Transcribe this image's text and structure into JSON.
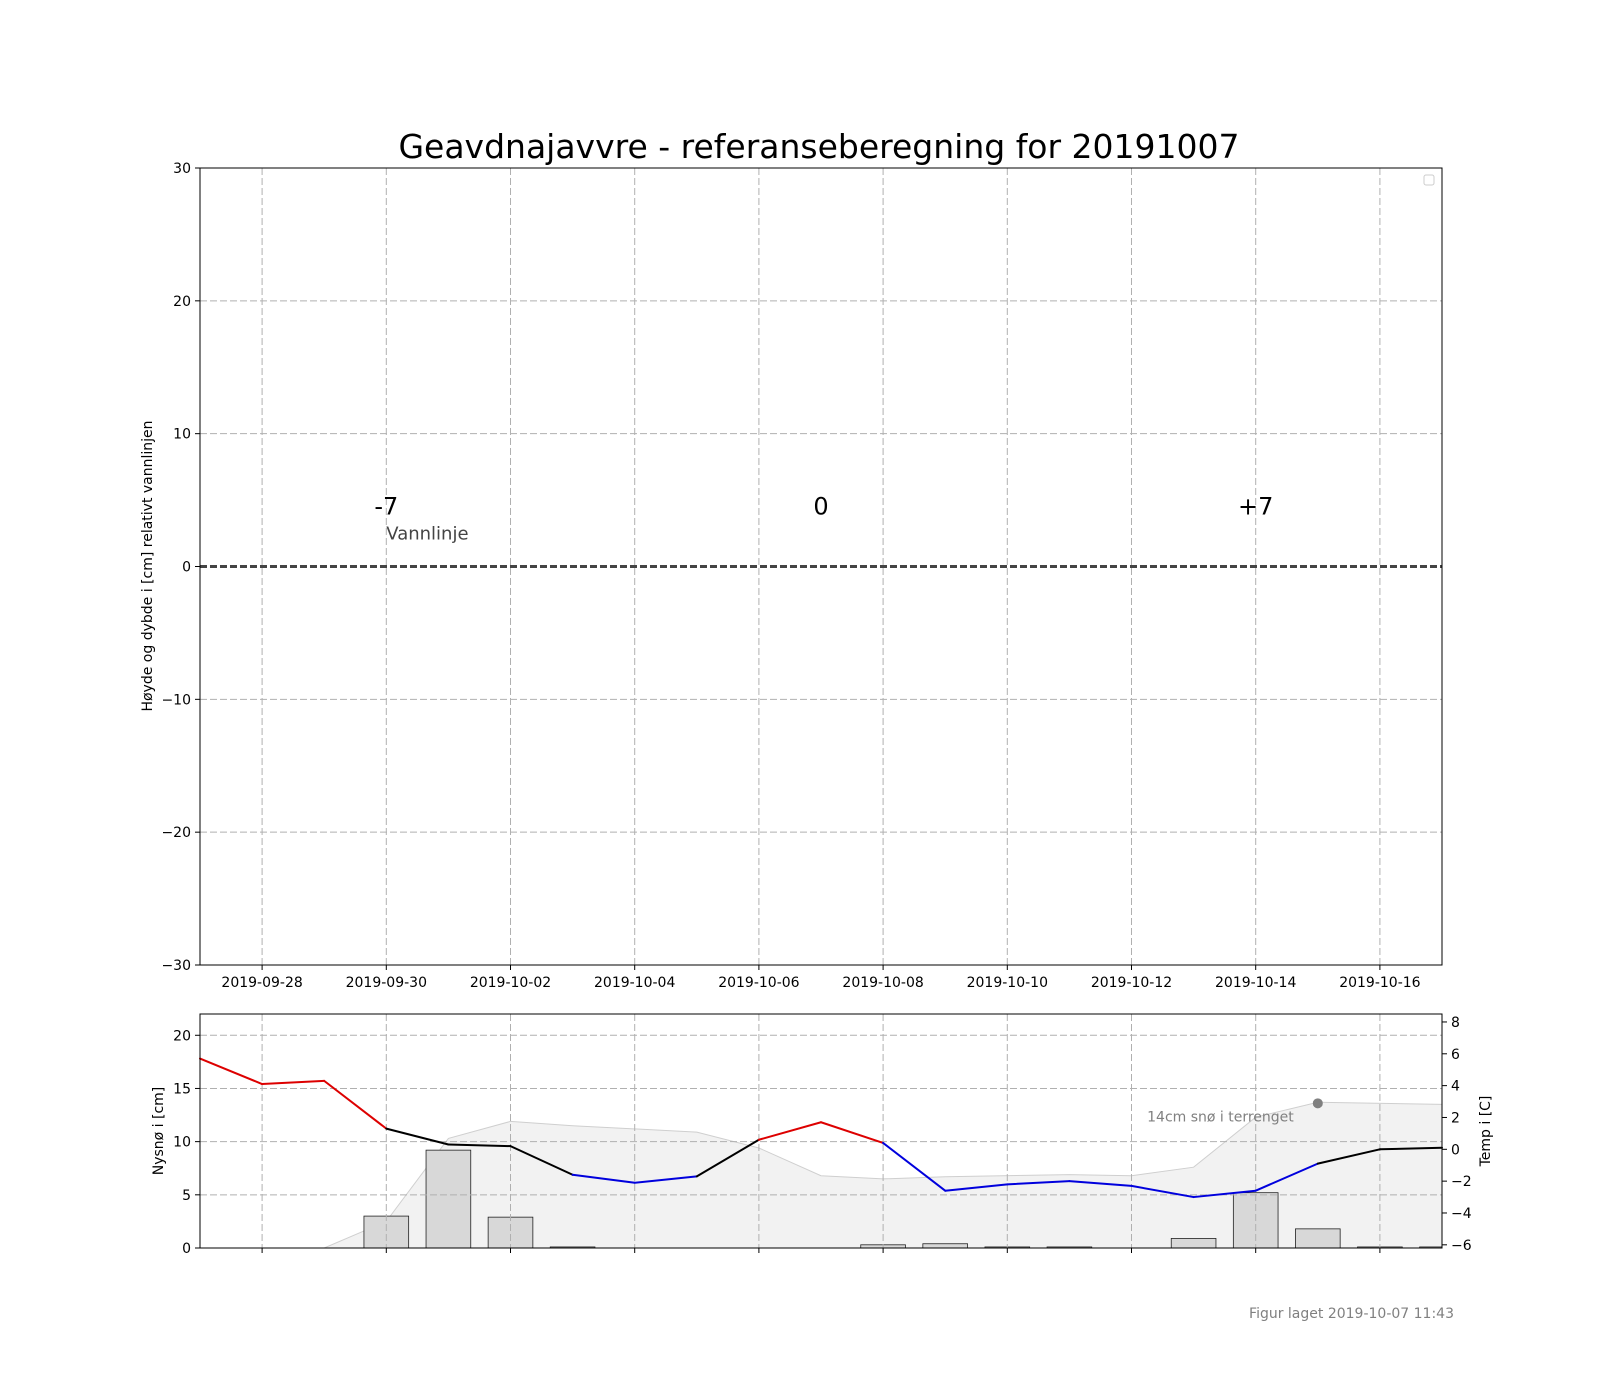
{
  "figure": {
    "footer": "Figur laget 2019-10-07 11:43"
  },
  "chart_data": [
    {
      "type": "line",
      "title": "Geavdnajavvre - referanseberegning for 20191007",
      "ylabel": "Høyde og dybde i [cm] relativt vannlinjen",
      "xlabel": "",
      "x_range": [
        "2019-09-27",
        "2019-10-17"
      ],
      "ylim": [
        -30,
        30
      ],
      "y_ticks": [
        -30,
        -20,
        -10,
        0,
        10,
        20,
        30
      ],
      "y_tick_labels": [
        "−30",
        "−20",
        "−10",
        "0",
        "10",
        "20",
        "30"
      ],
      "x_ticks": [
        "2019-09-28",
        "2019-09-30",
        "2019-10-02",
        "2019-10-04",
        "2019-10-06",
        "2019-10-08",
        "2019-10-10",
        "2019-10-12",
        "2019-10-14",
        "2019-10-16"
      ],
      "grid": true,
      "legend": "top-right (empty)",
      "waterline": {
        "y": 0,
        "label": "Vannlinje",
        "label_x": "2019-09-30",
        "label_y": 1.5
      },
      "day_markers": [
        {
          "label": "-7",
          "x": "2019-09-30",
          "y": 4.5
        },
        {
          "label": "0",
          "x": "2019-10-07",
          "y": 4.5
        },
        {
          "label": "+7",
          "x": "2019-10-14",
          "y": 4.5
        }
      ]
    },
    {
      "type": "bar",
      "ylabel": "Nysnø i [cm]",
      "ylim": [
        0,
        22
      ],
      "y_ticks": [
        0,
        5,
        10,
        15,
        20
      ],
      "y_tick_labels": [
        "0",
        "5",
        "10",
        "15",
        "20"
      ],
      "grid": true,
      "bar_color": "#d8d8d8",
      "snow_bars": [
        {
          "x": "2019-09-30",
          "value": 3.0
        },
        {
          "x": "2019-10-01",
          "value": 9.2
        },
        {
          "x": "2019-10-02",
          "value": 2.9
        },
        {
          "x": "2019-10-03",
          "value": 0.1
        },
        {
          "x": "2019-10-08",
          "value": 0.3
        },
        {
          "x": "2019-10-09",
          "value": 0.4
        },
        {
          "x": "2019-10-10",
          "value": 0.1
        },
        {
          "x": "2019-10-11",
          "value": 0.1
        },
        {
          "x": "2019-10-13",
          "value": 0.9
        },
        {
          "x": "2019-10-14",
          "value": 5.2
        },
        {
          "x": "2019-10-15",
          "value": 1.8
        },
        {
          "x": "2019-10-16",
          "value": 0.1
        },
        {
          "x": "2019-10-17",
          "value": 0.1
        }
      ],
      "snow_depth_area": {
        "x": [
          "2019-09-27",
          "2019-09-29",
          "2019-09-30",
          "2019-10-01",
          "2019-10-02",
          "2019-10-03",
          "2019-10-05",
          "2019-10-06",
          "2019-10-07",
          "2019-10-08",
          "2019-10-09",
          "2019-10-11",
          "2019-10-12",
          "2019-10-13",
          "2019-10-14",
          "2019-10-15",
          "2019-10-17"
        ],
        "values": [
          0,
          0,
          2.5,
          10.3,
          11.9,
          11.5,
          10.9,
          9.4,
          6.8,
          6.5,
          6.7,
          6.9,
          6.8,
          7.6,
          12.3,
          13.7,
          13.5
        ],
        "label": "14cm snø i terrenget",
        "marker": {
          "x": "2019-10-15",
          "value": 13.6
        }
      },
      "temperature": {
        "ylabel": "Temp i [C]",
        "ylim": [
          -6.2,
          8.5
        ],
        "y_ticks": [
          -6,
          -4,
          -2,
          0,
          2,
          4,
          6,
          8
        ],
        "y_tick_labels": [
          "−6",
          "−4",
          "−2",
          "0",
          "2",
          "4",
          "6",
          "8"
        ],
        "x": [
          "2019-09-27",
          "2019-09-28",
          "2019-09-29",
          "2019-09-30",
          "2019-10-01",
          "2019-10-02",
          "2019-10-03",
          "2019-10-04",
          "2019-10-05",
          "2019-10-06",
          "2019-10-07",
          "2019-10-08",
          "2019-10-09",
          "2019-10-10",
          "2019-10-11",
          "2019-10-12",
          "2019-10-13",
          "2019-10-14",
          "2019-10-15",
          "2019-10-16",
          "2019-10-17"
        ],
        "values": [
          5.7,
          4.1,
          4.3,
          1.3,
          0.3,
          0.2,
          -1.6,
          -2.1,
          -1.7,
          0.6,
          1.7,
          0.4,
          -2.6,
          -2.2,
          -2.0,
          -2.3,
          -3.0,
          -2.6,
          -0.9,
          0.0,
          0.1
        ],
        "colors": {
          "warm": "#dd0000",
          "cold": "#0000dd",
          "neutral": "#000000"
        }
      }
    }
  ]
}
